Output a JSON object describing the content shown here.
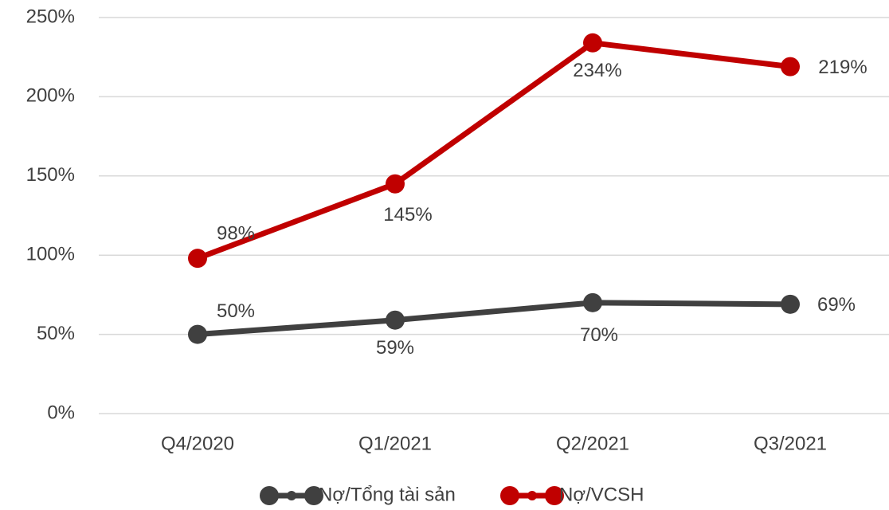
{
  "chart_data": {
    "type": "line",
    "categories": [
      "Q4/2020",
      "Q1/2021",
      "Q2/2021",
      "Q3/2021"
    ],
    "series": [
      {
        "name": "Nợ/Tổng tài sản",
        "color": "#404040",
        "values": [
          50,
          59,
          70,
          69
        ],
        "value_labels": [
          "50%",
          "59%",
          "70%",
          "69%"
        ]
      },
      {
        "name": "Nợ/VCSH",
        "color": "#c00000",
        "values": [
          98,
          145,
          234,
          219
        ],
        "value_labels": [
          "98%",
          "145%",
          "234%",
          "219%"
        ]
      }
    ],
    "ylim": [
      0,
      250
    ],
    "yticks": [
      {
        "value": 0,
        "label": "0%"
      },
      {
        "value": 50,
        "label": "50%"
      },
      {
        "value": 100,
        "label": "100%"
      },
      {
        "value": 150,
        "label": "150%"
      },
      {
        "value": 200,
        "label": "200%"
      },
      {
        "value": 250,
        "label": "250%"
      }
    ],
    "grid": true,
    "legend": "bottom"
  }
}
